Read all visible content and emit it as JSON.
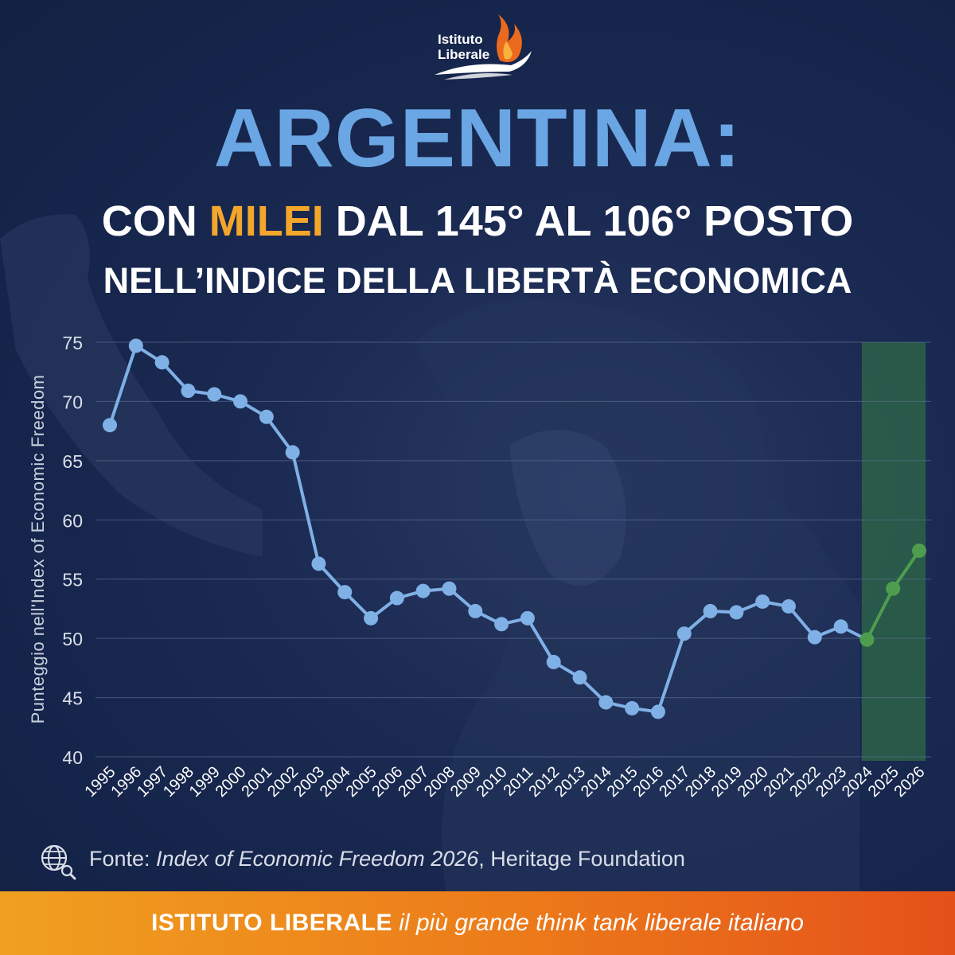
{
  "brand": {
    "logo_line1": "Istituto",
    "logo_line2": "Liberale"
  },
  "headline": {
    "title": "ARGENTINA:",
    "sub1_pre": "CON ",
    "sub1_highlight": "MILEI",
    "sub1_post": " DAL 145° AL 106° POSTO",
    "sub2": "NELL’INDICE DELLA LIBERTÀ ECONOMICA"
  },
  "source": {
    "prefix": "Fonte: ",
    "title": "Index of Economic Freedom 2026",
    "suffix": ", Heritage Foundation"
  },
  "footer": {
    "bold": "ISTITUTO LIBERALE",
    "italic": " il più grande think tank liberale italiano"
  },
  "colors": {
    "accent_title": "#6aa6e3",
    "highlight": "#f3a62a",
    "series_main": "#7fb0e6",
    "series_milei": "#4e9d4f",
    "highlight_band": "#2e6a47",
    "footer_start": "#f0a020",
    "footer_end": "#e4511a"
  },
  "icons": {
    "source_icon": "globe-search-icon"
  },
  "chart_data": {
    "type": "line",
    "ylabel": "Punteggio nell'Index of Economic Freedom",
    "xlabel": "",
    "ylim": [
      40,
      75
    ],
    "yticks": [
      40,
      45,
      50,
      55,
      60,
      65,
      70,
      75
    ],
    "grid": "horizontal",
    "categories": [
      "1995",
      "1996",
      "1997",
      "1998",
      "1999",
      "2000",
      "2001",
      "2002",
      "2003",
      "2004",
      "2005",
      "2006",
      "2007",
      "2008",
      "2009",
      "2010",
      "2011",
      "2012",
      "2013",
      "2014",
      "2015",
      "2016",
      "2017",
      "2018",
      "2019",
      "2020",
      "2021",
      "2022",
      "2023",
      "2024",
      "2025",
      "2026"
    ],
    "series": [
      {
        "values": [
          68.0,
          74.7,
          73.3,
          70.9,
          70.6,
          70.0,
          68.7,
          65.7,
          56.3,
          53.9,
          51.7,
          53.4,
          54.0,
          54.2,
          52.3,
          51.2,
          51.7,
          48.0,
          46.7,
          44.6,
          44.1,
          43.8,
          50.4,
          52.3,
          52.2,
          53.1,
          52.7,
          50.1,
          51.0,
          49.9,
          null,
          null
        ]
      },
      {
        "values": [
          null,
          null,
          null,
          null,
          null,
          null,
          null,
          null,
          null,
          null,
          null,
          null,
          null,
          null,
          null,
          null,
          null,
          null,
          null,
          null,
          null,
          null,
          null,
          null,
          null,
          null,
          null,
          null,
          null,
          49.9,
          54.2,
          57.4
        ]
      }
    ],
    "highlight_range": [
      "2024",
      "2026"
    ]
  }
}
